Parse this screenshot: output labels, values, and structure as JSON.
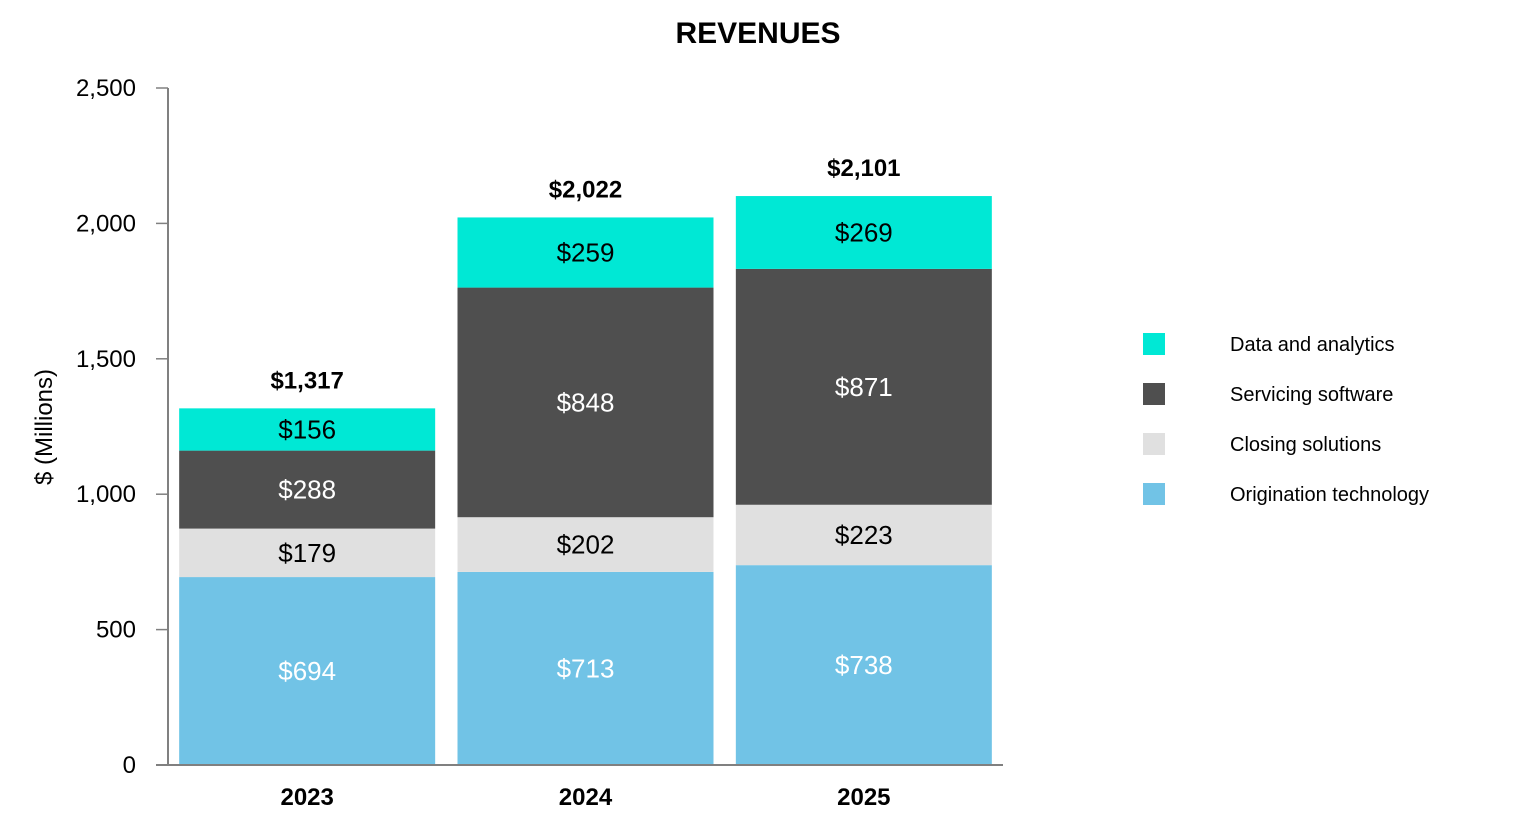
{
  "chart_data": {
    "type": "bar",
    "stacked": true,
    "title": "REVENUES",
    "ylabel": "$ (Millions)",
    "xlabel": "",
    "ylim": [
      0,
      2500
    ],
    "yticks": [
      "0",
      "500",
      "1,000",
      "1,500",
      "2,000",
      "2,500"
    ],
    "ytick_values": [
      0,
      500,
      1000,
      1500,
      2000,
      2500
    ],
    "categories": [
      "2023",
      "2024",
      "2025"
    ],
    "series": [
      {
        "name": "Origination technology",
        "values": [
          694,
          713,
          738
        ],
        "labels": [
          "$694",
          "$713",
          "$738"
        ],
        "color": "#71c3e6",
        "label_color": "#ffffff"
      },
      {
        "name": "Closing solutions",
        "values": [
          179,
          202,
          223
        ],
        "labels": [
          "$179",
          "$202",
          "$223"
        ],
        "color": "#e0e0e0",
        "label_color": "#000000"
      },
      {
        "name": "Servicing software",
        "values": [
          288,
          848,
          871
        ],
        "labels": [
          "$288",
          "$848",
          "$871"
        ],
        "color": "#4f4f4f",
        "label_color": "#ffffff"
      },
      {
        "name": "Data and analytics",
        "values": [
          156,
          259,
          269
        ],
        "labels": [
          "$156",
          "$259",
          "$269"
        ],
        "color": "#00e8d5",
        "label_color": "#000000"
      }
    ],
    "totals": [
      "$1,317",
      "$2,022",
      "$2,101"
    ],
    "total_values": [
      1317,
      2022,
      2101
    ],
    "legend_position": "right",
    "legend_order": [
      "Data and analytics",
      "Servicing software",
      "Closing solutions",
      "Origination technology"
    ],
    "grid": false
  }
}
